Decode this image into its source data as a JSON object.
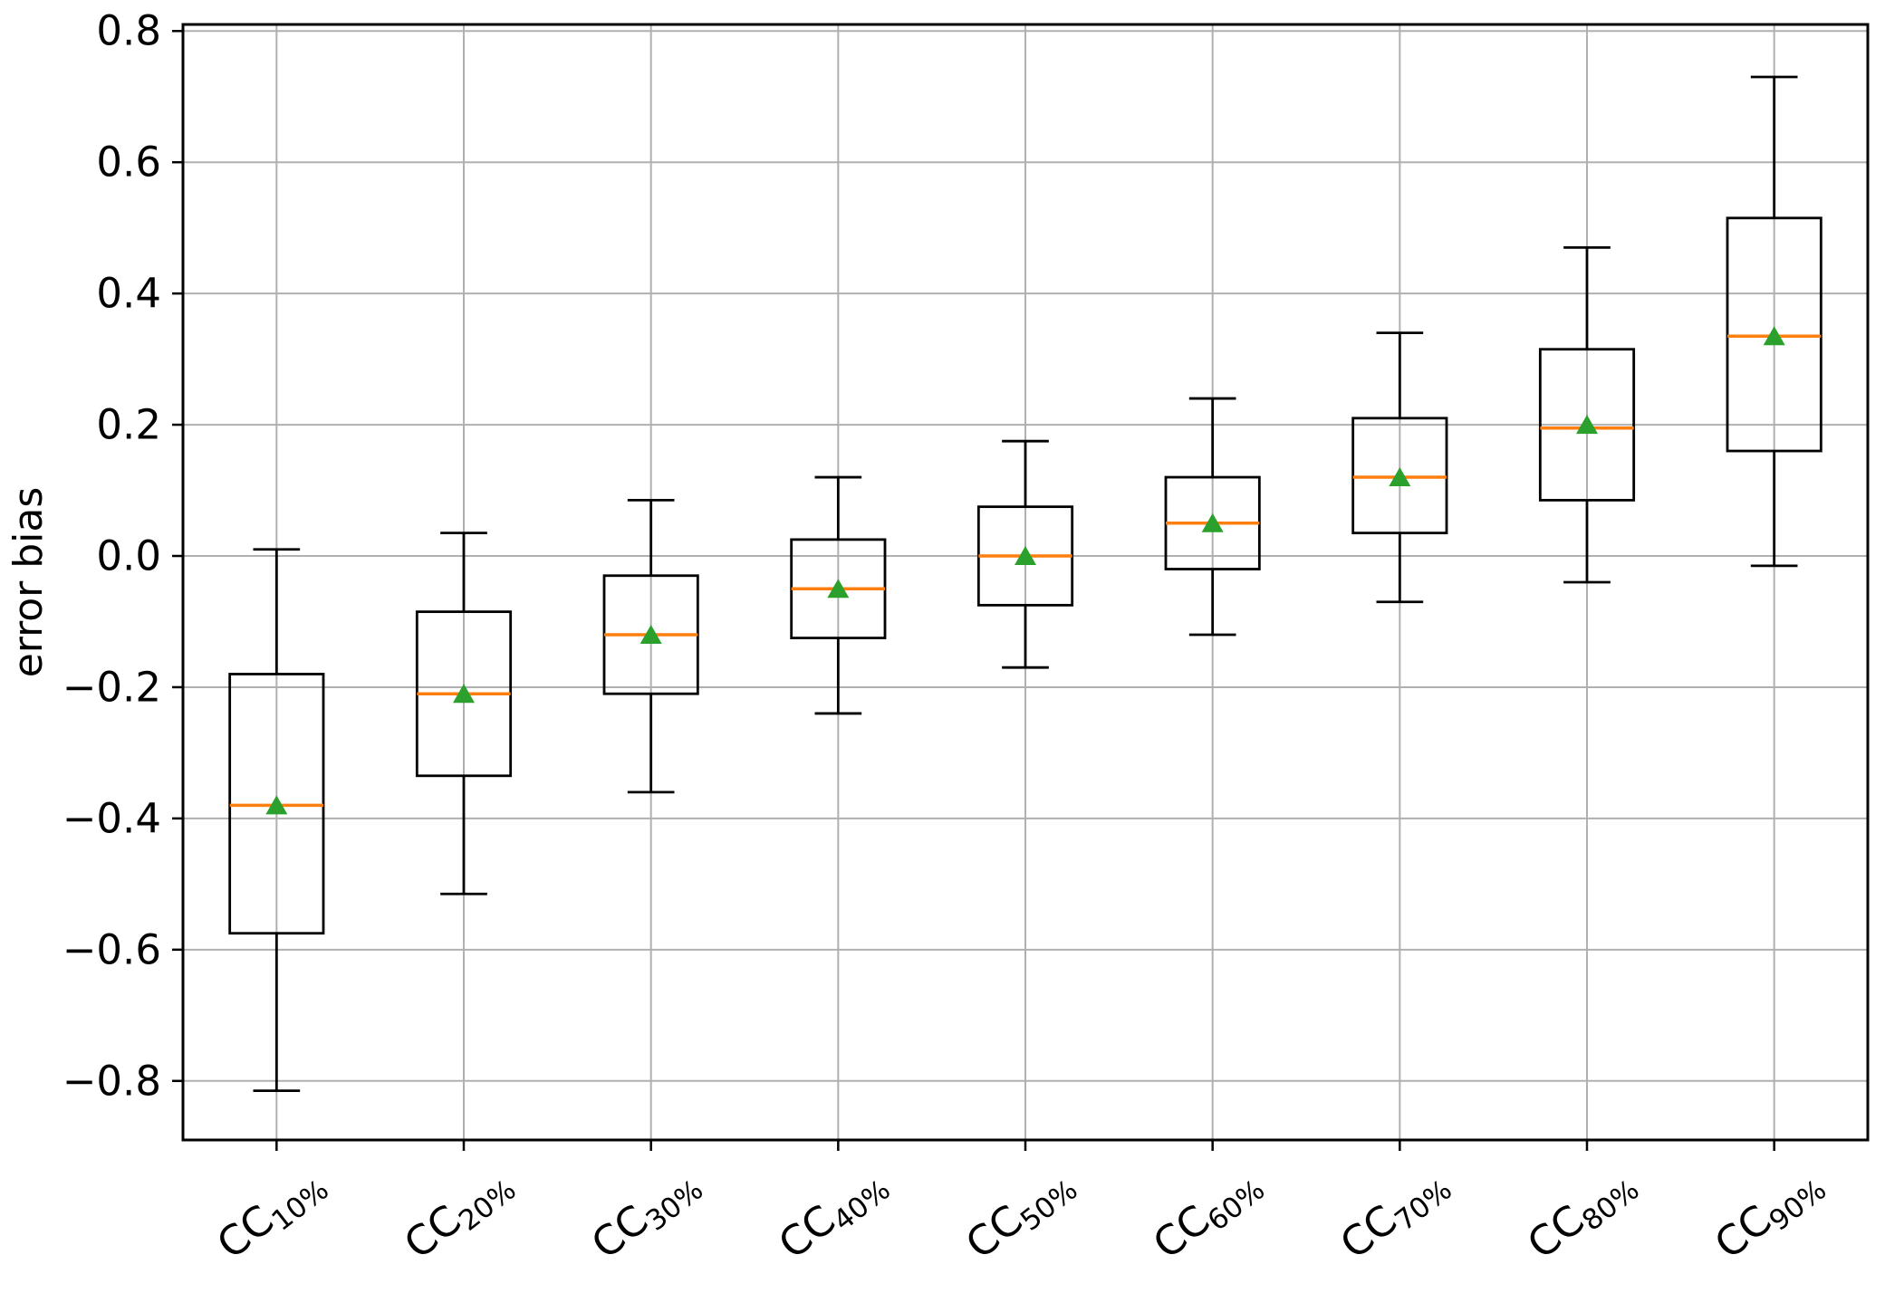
{
  "chart_data": {
    "type": "box",
    "title": "",
    "xlabel": "",
    "ylabel": "error bias",
    "ylim": [
      -0.89,
      0.81
    ],
    "yticks": [
      0.8,
      0.6,
      0.4,
      0.2,
      0.0,
      -0.2,
      -0.4,
      -0.6,
      -0.8
    ],
    "ytick_labels": [
      "0.8",
      "0.6",
      "0.4",
      "0.2",
      "0.0",
      "−0.2",
      "−0.4",
      "−0.6",
      "−0.8"
    ],
    "grid": true,
    "legend": false,
    "x_label_rotation_deg": 38,
    "categories": [
      {
        "prefix": "CC",
        "subscript": "10%"
      },
      {
        "prefix": "CC",
        "subscript": "20%"
      },
      {
        "prefix": "CC",
        "subscript": "30%"
      },
      {
        "prefix": "CC",
        "subscript": "40%"
      },
      {
        "prefix": "CC",
        "subscript": "50%"
      },
      {
        "prefix": "CC",
        "subscript": "60%"
      },
      {
        "prefix": "CC",
        "subscript": "70%"
      },
      {
        "prefix": "CC",
        "subscript": "80%"
      },
      {
        "prefix": "CC",
        "subscript": "90%"
      }
    ],
    "boxes": [
      {
        "label": "CC10%",
        "whisker_low": -0.815,
        "q1": -0.575,
        "median": -0.38,
        "mean": -0.38,
        "q3": -0.18,
        "whisker_high": 0.01
      },
      {
        "label": "CC20%",
        "whisker_low": -0.515,
        "q1": -0.335,
        "median": -0.21,
        "mean": -0.21,
        "q3": -0.085,
        "whisker_high": 0.035
      },
      {
        "label": "CC30%",
        "whisker_low": -0.36,
        "q1": -0.21,
        "median": -0.12,
        "mean": -0.12,
        "q3": -0.03,
        "whisker_high": 0.085
      },
      {
        "label": "CC40%",
        "whisker_low": -0.24,
        "q1": -0.125,
        "median": -0.05,
        "mean": -0.05,
        "q3": 0.025,
        "whisker_high": 0.12
      },
      {
        "label": "CC50%",
        "whisker_low": -0.17,
        "q1": -0.075,
        "median": 0.0,
        "mean": 0.0,
        "q3": 0.075,
        "whisker_high": 0.175
      },
      {
        "label": "CC60%",
        "whisker_low": -0.12,
        "q1": -0.02,
        "median": 0.05,
        "mean": 0.05,
        "q3": 0.12,
        "whisker_high": 0.24
      },
      {
        "label": "CC70%",
        "whisker_low": -0.07,
        "q1": 0.035,
        "median": 0.12,
        "mean": 0.12,
        "q3": 0.21,
        "whisker_high": 0.34
      },
      {
        "label": "CC80%",
        "whisker_low": -0.04,
        "q1": 0.085,
        "median": 0.195,
        "mean": 0.2,
        "q3": 0.315,
        "whisker_high": 0.47
      },
      {
        "label": "CC90%",
        "whisker_low": -0.015,
        "q1": 0.16,
        "median": 0.335,
        "mean": 0.335,
        "q3": 0.515,
        "whisker_high": 0.73
      }
    ],
    "mean_marker_shape": "triangle-up",
    "colors": {
      "box_edge": "#000000",
      "whisker": "#000000",
      "median": "#ff7f0e",
      "mean_marker": "#2ca02c",
      "grid": "#b0b0b0",
      "spine": "#000000",
      "background": "#ffffff"
    }
  }
}
